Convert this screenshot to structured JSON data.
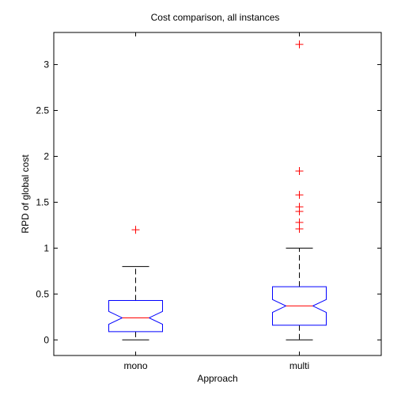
{
  "chart_data": {
    "type": "box",
    "title": "Cost comparison, all instances",
    "xlabel": "Approach",
    "ylabel": "RPD of global cost",
    "ylim": [
      -0.17,
      3.35
    ],
    "yticks": [
      0,
      0.5,
      1,
      1.5,
      2,
      2.5,
      3
    ],
    "ytick_labels": [
      "0",
      "0.5",
      "1",
      "1.5",
      "2",
      "2.5",
      "3"
    ],
    "categories": [
      "mono",
      "multi"
    ],
    "grid": false,
    "notched": true,
    "colors": {
      "box": "#0000ff",
      "median": "#ff0000",
      "whisker": "#000000",
      "outlier": "#ff0000"
    },
    "boxes": [
      {
        "category": "mono",
        "whisker_low": 0.0,
        "q1": 0.09,
        "median": 0.24,
        "q3": 0.43,
        "whisker_high": 0.8,
        "notch_low": 0.17,
        "notch_high": 0.31,
        "outliers": [
          1.2
        ]
      },
      {
        "category": "multi",
        "whisker_low": 0.0,
        "q1": 0.16,
        "median": 0.37,
        "q3": 0.58,
        "whisker_high": 1.0,
        "notch_low": 0.3,
        "notch_high": 0.44,
        "outliers": [
          1.21,
          1.28,
          1.4,
          1.45,
          1.58,
          1.84,
          3.22
        ]
      }
    ]
  }
}
